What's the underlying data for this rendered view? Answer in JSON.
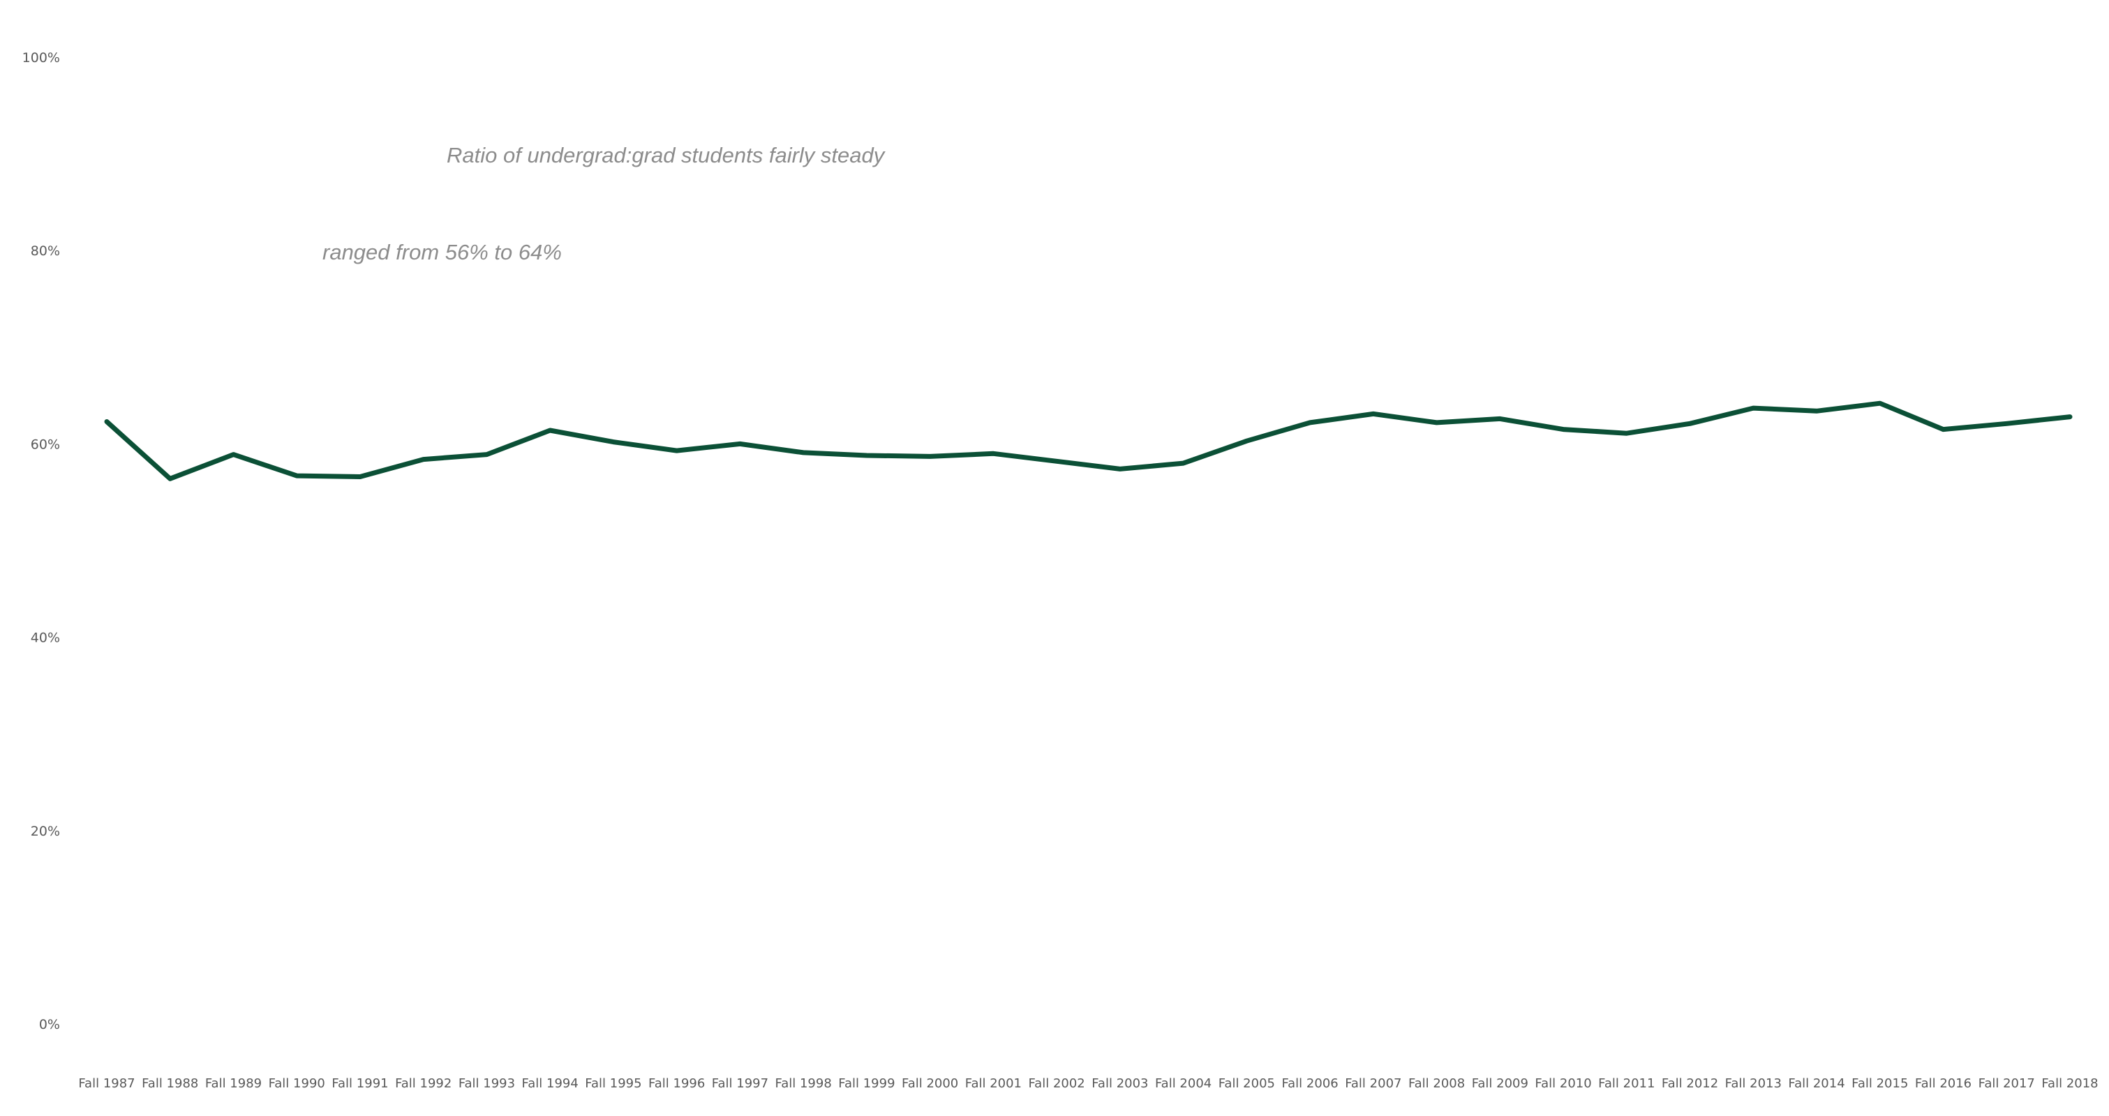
{
  "chart_data": {
    "type": "line",
    "title": "",
    "xlabel": "",
    "ylabel": "",
    "ylim": [
      0,
      100
    ],
    "y_ticks": [
      "0%",
      "20%",
      "40%",
      "60%",
      "80%",
      "100%"
    ],
    "grid": false,
    "legend": "none",
    "categories": [
      "Fall 1987",
      "Fall 1988",
      "Fall 1989",
      "Fall 1990",
      "Fall 1991",
      "Fall 1992",
      "Fall 1993",
      "Fall 1994",
      "Fall 1995",
      "Fall 1996",
      "Fall 1997",
      "Fall 1998",
      "Fall 1999",
      "Fall 2000",
      "Fall 2001",
      "Fall 2002",
      "Fall 2003",
      "Fall 2004",
      "Fall 2005",
      "Fall 2006",
      "Fall 2007",
      "Fall 2008",
      "Fall 2009",
      "Fall 2010",
      "Fall 2011",
      "Fall 2012",
      "Fall 2013",
      "Fall 2014",
      "Fall 2015",
      "Fall 2016",
      "Fall 2017",
      "Fall 2018"
    ],
    "series": [
      {
        "color": "#0b5036",
        "values": [
          62.3,
          56.4,
          58.9,
          56.7,
          56.6,
          58.4,
          58.9,
          61.4,
          60.2,
          59.3,
          60.0,
          59.1,
          58.8,
          58.7,
          59.0,
          58.2,
          57.4,
          58.0,
          60.3,
          62.2,
          63.1,
          62.2,
          62.6,
          61.5,
          61.1,
          62.1,
          63.7,
          63.4,
          64.2,
          61.5,
          62.1,
          62.8
        ]
      }
    ],
    "annotations": [
      "Ratio of undergrad:grad students fairly steady",
      "ranged from 56% to 64%"
    ]
  }
}
